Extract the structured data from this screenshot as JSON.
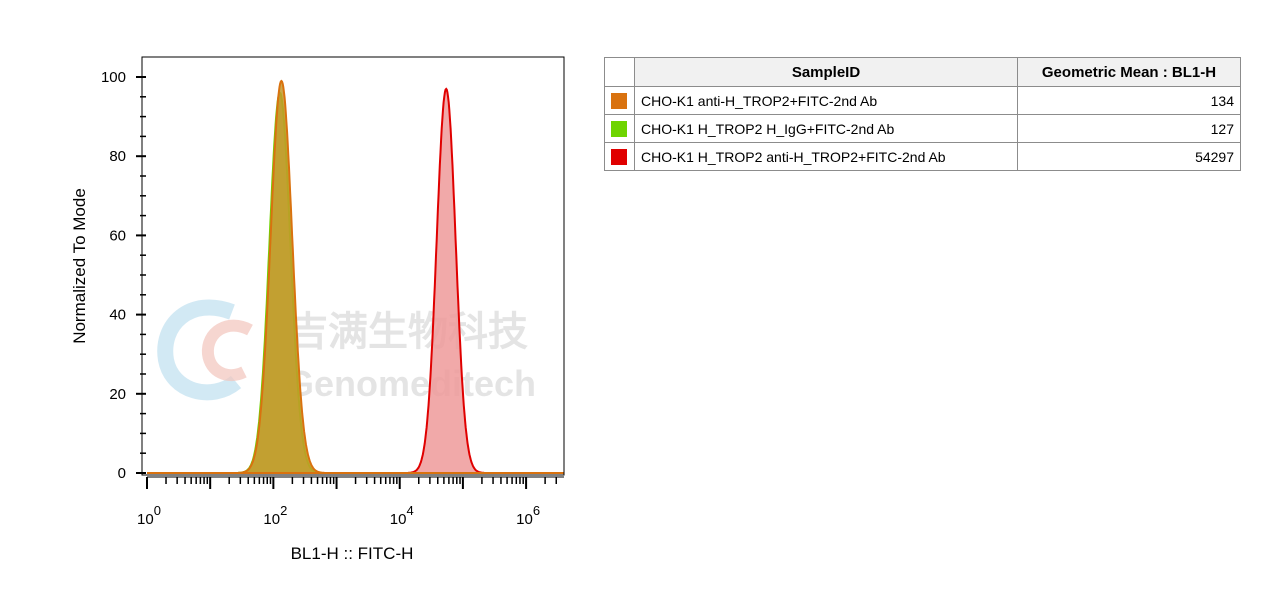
{
  "chart_data": {
    "type": "area",
    "xlabel": "BL1-H :: FITC-H",
    "ylabel": "Normalized To Mode",
    "xscale": "log",
    "x_tick_labels": [
      {
        "base": "10",
        "exp": "0",
        "value": 1
      },
      {
        "base": "10",
        "exp": "2",
        "value": 100
      },
      {
        "base": "10",
        "exp": "4",
        "value": 10000
      },
      {
        "base": "10",
        "exp": "6",
        "value": 1000000
      }
    ],
    "y_ticks": [
      0,
      20,
      40,
      60,
      80,
      100
    ],
    "ylim": [
      0,
      105
    ],
    "series": [
      {
        "name": "CHO-K1 anti-H_TROP2+FITC-2nd Ab",
        "color": "#d9720f",
        "fill": "#c49a2a",
        "peak_x": 134,
        "peak_y": 99,
        "log_sigma": 0.17
      },
      {
        "name": "CHO-K1 H_TROP2 H_IgG+FITC-2nd Ab",
        "color": "#6ed400",
        "fill": "#a9b83c",
        "peak_x": 127,
        "peak_y": 96,
        "log_sigma": 0.165
      },
      {
        "name": "CHO-K1 H_TROP2 anti-H_TROP2+FITC-2nd Ab",
        "color": "#e00000",
        "fill": "#ee9a9a",
        "peak_x": 54297,
        "peak_y": 97,
        "log_sigma": 0.15
      }
    ]
  },
  "watermark": {
    "cn": "吉满生物科技",
    "en": "Genomeditech"
  },
  "legend": {
    "header": {
      "sample": "SampleID",
      "metric": "Geometric Mean : BL1-H"
    },
    "rows": [
      {
        "color": "#d9720f",
        "sample": "CHO-K1 anti-H_TROP2+FITC-2nd Ab",
        "value": "134"
      },
      {
        "color": "#6ed400",
        "sample": "CHO-K1 H_TROP2 H_IgG+FITC-2nd Ab",
        "value": "127"
      },
      {
        "color": "#e00000",
        "sample": "CHO-K1 H_TROP2 anti-H_TROP2+FITC-2nd Ab",
        "value": "54297"
      }
    ]
  }
}
